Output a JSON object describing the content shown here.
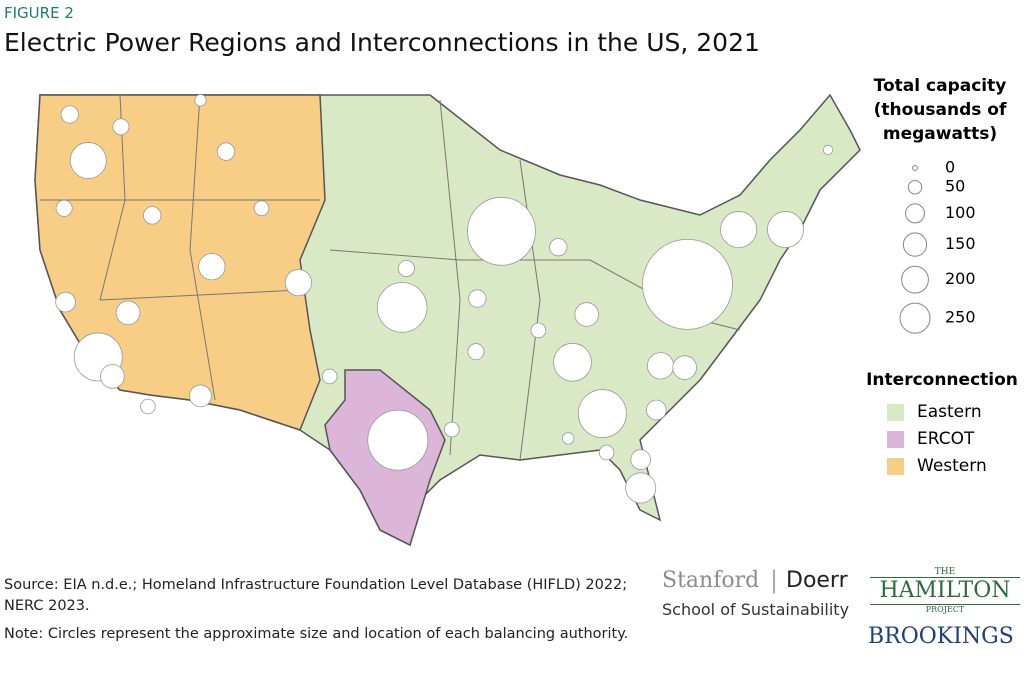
{
  "figure_label": "FIGURE 2",
  "title": "Electric Power Regions and Interconnections in the US, 2021",
  "map": {
    "type": "bubble-map",
    "size_legend": {
      "title": [
        "Total capacity",
        "(thousands of",
        "megawatts)"
      ],
      "values": [
        0,
        50,
        100,
        150,
        200,
        250
      ]
    },
    "color_legend": {
      "title": "Interconnection",
      "items": [
        {
          "name": "Eastern",
          "color": "#d9e9c6"
        },
        {
          "name": "ERCOT",
          "color": "#dbb6d9"
        },
        {
          "name": "Western",
          "color": "#f8cd86"
        }
      ]
    },
    "bubbles": {
      "lon": [
        -78.4,
        -91.5,
        -98.5,
        -98.8,
        -84.4,
        -86.5,
        -74.8,
        -71.5,
        -119.9,
        -80.3,
        -81.7,
        -120.6,
        -111.9,
        -105.8,
        -117.8,
        -118.9,
        -112.7,
        -116.1,
        -85.5,
        -78.6,
        -93.2,
        -87.5,
        -88.9,
        -93.3,
        -98.2,
        -110.9,
        -122.3,
        -121.9,
        -118.3,
        -122.2,
        -116.4,
        -103.6,
        -80.6,
        -81.7,
        -68.5,
        -108.4,
        -112.7,
        -95.0,
        -86.8,
        -84.1
      ],
      "lat": [
        38.3,
        41.3,
        37.0,
        29.5,
        31.0,
        33.9,
        41.4,
        41.4,
        34.2,
        33.7,
        26.8,
        45.3,
        39.3,
        38.4,
        36.7,
        33.1,
        32.0,
        42.2,
        36.6,
        33.6,
        37.5,
        40.4,
        35.7,
        34.5,
        39.2,
        45.8,
        42.6,
        47.9,
        47.2,
        37.3,
        31.4,
        33.1,
        31.2,
        28.4,
        45.9,
        42.6,
        48.7,
        30.1,
        29.6,
        28.8
      ],
      "capacity": [
        186,
        106,
        57,
        83,
        53,
        33,
        30,
        30,
        53,
        16,
        21,
        30,
        16,
        16,
        13,
        13,
        11,
        7,
        13,
        13,
        7,
        7,
        5,
        6,
        6,
        7,
        6,
        7,
        6,
        9,
        5,
        5,
        9,
        9,
        2,
        5,
        3,
        5,
        3,
        5
      ]
    }
  },
  "source": "Source: EIA n.d.e.; Homeland Infrastructure Foundation Level Database (HIFLD) 2022; NERC 2023.",
  "note": "Note: Circles represent the approximate size and location of each balancing authority.",
  "logos": {
    "stanford": "Stanford",
    "doerr": "Doerr",
    "school": "School of Sustainability",
    "the": "THE",
    "hamilton": "HAMILTON",
    "project": "PROJECT",
    "brookings": "BROOKINGS"
  }
}
